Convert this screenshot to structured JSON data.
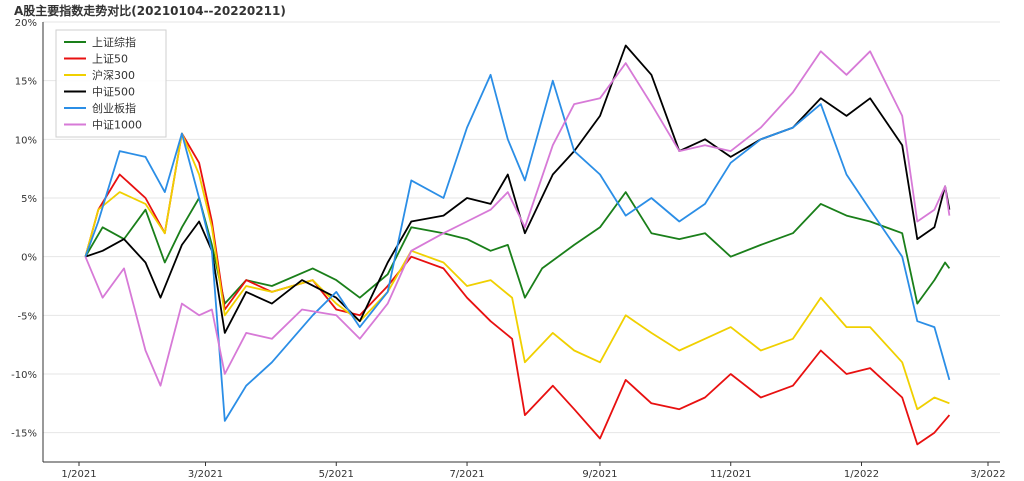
{
  "chart_data": {
    "type": "line",
    "title": "A股主要指数走势对比(20210104--20220211)",
    "xlabel": "",
    "ylabel": "",
    "x_ticks": [
      "1/2021",
      "3/2021",
      "5/2021",
      "7/2021",
      "9/2021",
      "11/2021",
      "1/2022",
      "3/2022"
    ],
    "y_ticks": [
      "-15%",
      "-10%",
      "-5%",
      "0%",
      "5%",
      "10%",
      "15%",
      "20%"
    ],
    "ylim": [
      -17.5,
      20
    ],
    "grid": true,
    "legend_position": "top-left",
    "series": [
      {
        "name": "上证综指",
        "color": "#1a7f1a",
        "points": [
          [
            "2021-01-04",
            0
          ],
          [
            "2021-01-12",
            2.5
          ],
          [
            "2021-01-22",
            1.5
          ],
          [
            "2021-02-01",
            4
          ],
          [
            "2021-02-10",
            -0.5
          ],
          [
            "2021-02-18",
            2.5
          ],
          [
            "2021-02-26",
            5
          ],
          [
            "2021-03-04",
            1
          ],
          [
            "2021-03-10",
            -4
          ],
          [
            "2021-03-20",
            -2
          ],
          [
            "2021-04-01",
            -2.5
          ],
          [
            "2021-04-20",
            -1
          ],
          [
            "2021-05-01",
            -2
          ],
          [
            "2021-05-12",
            -3.5
          ],
          [
            "2021-05-25",
            -1.5
          ],
          [
            "2021-06-05",
            2.5
          ],
          [
            "2021-06-20",
            2
          ],
          [
            "2021-07-01",
            1.5
          ],
          [
            "2021-07-12",
            0.5
          ],
          [
            "2021-07-20",
            1
          ],
          [
            "2021-07-28",
            -3.5
          ],
          [
            "2021-08-05",
            -1
          ],
          [
            "2021-08-20",
            1
          ],
          [
            "2021-09-01",
            2.5
          ],
          [
            "2021-09-13",
            5.5
          ],
          [
            "2021-09-25",
            2
          ],
          [
            "2021-10-08",
            1.5
          ],
          [
            "2021-10-20",
            2
          ],
          [
            "2021-11-01",
            0
          ],
          [
            "2021-11-15",
            1
          ],
          [
            "2021-11-30",
            2
          ],
          [
            "2021-12-13",
            4.5
          ],
          [
            "2021-12-25",
            3.5
          ],
          [
            "2022-01-05",
            3
          ],
          [
            "2022-01-20",
            2
          ],
          [
            "2022-01-27",
            -4
          ],
          [
            "2022-02-04",
            -2
          ],
          [
            "2022-02-09",
            -0.5
          ],
          [
            "2022-02-11",
            -1
          ]
        ]
      },
      {
        "name": "上证50",
        "color": "#e81010",
        "points": [
          [
            "2021-01-04",
            0
          ],
          [
            "2021-01-10",
            4
          ],
          [
            "2021-01-20",
            7
          ],
          [
            "2021-02-01",
            5
          ],
          [
            "2021-02-10",
            2
          ],
          [
            "2021-02-18",
            10.5
          ],
          [
            "2021-02-26",
            8
          ],
          [
            "2021-03-04",
            3
          ],
          [
            "2021-03-10",
            -4.5
          ],
          [
            "2021-03-20",
            -2
          ],
          [
            "2021-04-01",
            -3
          ],
          [
            "2021-04-20",
            -2
          ],
          [
            "2021-05-01",
            -4.5
          ],
          [
            "2021-05-12",
            -5
          ],
          [
            "2021-05-25",
            -2.5
          ],
          [
            "2021-06-05",
            0
          ],
          [
            "2021-06-20",
            -1
          ],
          [
            "2021-07-01",
            -3.5
          ],
          [
            "2021-07-12",
            -5.5
          ],
          [
            "2021-07-22",
            -7
          ],
          [
            "2021-07-28",
            -13.5
          ],
          [
            "2021-08-10",
            -11
          ],
          [
            "2021-08-20",
            -13
          ],
          [
            "2021-09-01",
            -15.5
          ],
          [
            "2021-09-13",
            -10.5
          ],
          [
            "2021-09-25",
            -12.5
          ],
          [
            "2021-10-08",
            -13
          ],
          [
            "2021-10-20",
            -12
          ],
          [
            "2021-11-01",
            -10
          ],
          [
            "2021-11-15",
            -12
          ],
          [
            "2021-11-30",
            -11
          ],
          [
            "2021-12-13",
            -8
          ],
          [
            "2021-12-25",
            -10
          ],
          [
            "2022-01-05",
            -9.5
          ],
          [
            "2022-01-20",
            -12
          ],
          [
            "2022-01-27",
            -16
          ],
          [
            "2022-02-04",
            -15
          ],
          [
            "2022-02-11",
            -13.5
          ]
        ]
      },
      {
        "name": "沪深300",
        "color": "#f0d000",
        "points": [
          [
            "2021-01-04",
            0
          ],
          [
            "2021-01-10",
            4
          ],
          [
            "2021-01-20",
            5.5
          ],
          [
            "2021-02-01",
            4.5
          ],
          [
            "2021-02-10",
            2
          ],
          [
            "2021-02-18",
            10.5
          ],
          [
            "2021-02-26",
            7
          ],
          [
            "2021-03-04",
            2.5
          ],
          [
            "2021-03-10",
            -5
          ],
          [
            "2021-03-20",
            -2.5
          ],
          [
            "2021-04-01",
            -3
          ],
          [
            "2021-04-20",
            -2
          ],
          [
            "2021-05-01",
            -4
          ],
          [
            "2021-05-12",
            -5.5
          ],
          [
            "2021-05-25",
            -3
          ],
          [
            "2021-06-05",
            0.5
          ],
          [
            "2021-06-20",
            -0.5
          ],
          [
            "2021-07-01",
            -2.5
          ],
          [
            "2021-07-12",
            -2
          ],
          [
            "2021-07-22",
            -3.5
          ],
          [
            "2021-07-28",
            -9
          ],
          [
            "2021-08-10",
            -6.5
          ],
          [
            "2021-08-20",
            -8
          ],
          [
            "2021-09-01",
            -9
          ],
          [
            "2021-09-13",
            -5
          ],
          [
            "2021-09-25",
            -6.5
          ],
          [
            "2021-10-08",
            -8
          ],
          [
            "2021-10-20",
            -7
          ],
          [
            "2021-11-01",
            -6
          ],
          [
            "2021-11-15",
            -8
          ],
          [
            "2021-11-30",
            -7
          ],
          [
            "2021-12-13",
            -3.5
          ],
          [
            "2021-12-25",
            -6
          ],
          [
            "2022-01-05",
            -6
          ],
          [
            "2022-01-20",
            -9
          ],
          [
            "2022-01-27",
            -13
          ],
          [
            "2022-02-04",
            -12
          ],
          [
            "2022-02-11",
            -12.5
          ]
        ]
      },
      {
        "name": "中证500",
        "color": "#000000",
        "points": [
          [
            "2021-01-04",
            0
          ],
          [
            "2021-01-12",
            0.5
          ],
          [
            "2021-01-22",
            1.5
          ],
          [
            "2021-02-01",
            -0.5
          ],
          [
            "2021-02-08",
            -3.5
          ],
          [
            "2021-02-18",
            1
          ],
          [
            "2021-02-26",
            3
          ],
          [
            "2021-03-04",
            0.5
          ],
          [
            "2021-03-10",
            -6.5
          ],
          [
            "2021-03-20",
            -3
          ],
          [
            "2021-04-01",
            -4
          ],
          [
            "2021-04-15",
            -2
          ],
          [
            "2021-05-01",
            -3.5
          ],
          [
            "2021-05-12",
            -5.5
          ],
          [
            "2021-05-25",
            -0.5
          ],
          [
            "2021-06-05",
            3
          ],
          [
            "2021-06-20",
            3.5
          ],
          [
            "2021-07-01",
            5
          ],
          [
            "2021-07-12",
            4.5
          ],
          [
            "2021-07-20",
            7
          ],
          [
            "2021-07-28",
            2
          ],
          [
            "2021-08-10",
            7
          ],
          [
            "2021-08-20",
            9
          ],
          [
            "2021-09-01",
            12
          ],
          [
            "2021-09-13",
            18
          ],
          [
            "2021-09-25",
            15.5
          ],
          [
            "2021-10-08",
            9
          ],
          [
            "2021-10-20",
            10
          ],
          [
            "2021-11-01",
            8.5
          ],
          [
            "2021-11-15",
            10
          ],
          [
            "2021-11-30",
            11
          ],
          [
            "2021-12-13",
            13.5
          ],
          [
            "2021-12-25",
            12
          ],
          [
            "2022-01-05",
            13.5
          ],
          [
            "2022-01-20",
            9.5
          ],
          [
            "2022-01-27",
            1.5
          ],
          [
            "2022-02-04",
            2.5
          ],
          [
            "2022-02-09",
            6
          ],
          [
            "2022-02-11",
            4
          ]
        ]
      },
      {
        "name": "创业板指",
        "color": "#2b8ee6",
        "points": [
          [
            "2021-01-04",
            0
          ],
          [
            "2021-01-10",
            3
          ],
          [
            "2021-01-20",
            9
          ],
          [
            "2021-02-01",
            8.5
          ],
          [
            "2021-02-10",
            5.5
          ],
          [
            "2021-02-18",
            10.5
          ],
          [
            "2021-02-26",
            5
          ],
          [
            "2021-03-04",
            0.5
          ],
          [
            "2021-03-10",
            -14
          ],
          [
            "2021-03-20",
            -11
          ],
          [
            "2021-04-01",
            -9
          ],
          [
            "2021-04-20",
            -5
          ],
          [
            "2021-05-01",
            -3
          ],
          [
            "2021-05-12",
            -6
          ],
          [
            "2021-05-25",
            -3
          ],
          [
            "2021-06-05",
            6.5
          ],
          [
            "2021-06-20",
            5
          ],
          [
            "2021-07-01",
            11
          ],
          [
            "2021-07-12",
            15.5
          ],
          [
            "2021-07-20",
            10
          ],
          [
            "2021-07-28",
            6.5
          ],
          [
            "2021-08-10",
            15
          ],
          [
            "2021-08-20",
            9
          ],
          [
            "2021-09-01",
            7
          ],
          [
            "2021-09-13",
            3.5
          ],
          [
            "2021-09-25",
            5
          ],
          [
            "2021-10-08",
            3
          ],
          [
            "2021-10-20",
            4.5
          ],
          [
            "2021-11-01",
            8
          ],
          [
            "2021-11-15",
            10
          ],
          [
            "2021-11-30",
            11
          ],
          [
            "2021-12-13",
            13
          ],
          [
            "2021-12-25",
            7
          ],
          [
            "2022-01-05",
            4
          ],
          [
            "2022-01-20",
            0
          ],
          [
            "2022-01-27",
            -5.5
          ],
          [
            "2022-02-04",
            -6
          ],
          [
            "2022-02-11",
            -10.5
          ]
        ]
      },
      {
        "name": "中证1000",
        "color": "#d77ad7",
        "points": [
          [
            "2021-01-04",
            0
          ],
          [
            "2021-01-12",
            -3.5
          ],
          [
            "2021-01-22",
            -1
          ],
          [
            "2021-02-01",
            -8
          ],
          [
            "2021-02-08",
            -11
          ],
          [
            "2021-02-18",
            -4
          ],
          [
            "2021-02-26",
            -5
          ],
          [
            "2021-03-04",
            -4.5
          ],
          [
            "2021-03-10",
            -10
          ],
          [
            "2021-03-20",
            -6.5
          ],
          [
            "2021-04-01",
            -7
          ],
          [
            "2021-04-15",
            -4.5
          ],
          [
            "2021-05-01",
            -5
          ],
          [
            "2021-05-12",
            -7
          ],
          [
            "2021-05-25",
            -4
          ],
          [
            "2021-06-05",
            0.5
          ],
          [
            "2021-06-20",
            2
          ],
          [
            "2021-07-01",
            3
          ],
          [
            "2021-07-12",
            4
          ],
          [
            "2021-07-20",
            5.5
          ],
          [
            "2021-07-28",
            2.5
          ],
          [
            "2021-08-10",
            9.5
          ],
          [
            "2021-08-20",
            13
          ],
          [
            "2021-09-01",
            13.5
          ],
          [
            "2021-09-13",
            16.5
          ],
          [
            "2021-09-25",
            13
          ],
          [
            "2021-10-08",
            9
          ],
          [
            "2021-10-20",
            9.5
          ],
          [
            "2021-11-01",
            9
          ],
          [
            "2021-11-15",
            11
          ],
          [
            "2021-11-30",
            14
          ],
          [
            "2021-12-13",
            17.5
          ],
          [
            "2021-12-25",
            15.5
          ],
          [
            "2022-01-05",
            17.5
          ],
          [
            "2022-01-20",
            12
          ],
          [
            "2022-01-27",
            3
          ],
          [
            "2022-02-04",
            4
          ],
          [
            "2022-02-09",
            6
          ],
          [
            "2022-02-11",
            3.5
          ]
        ]
      }
    ]
  }
}
